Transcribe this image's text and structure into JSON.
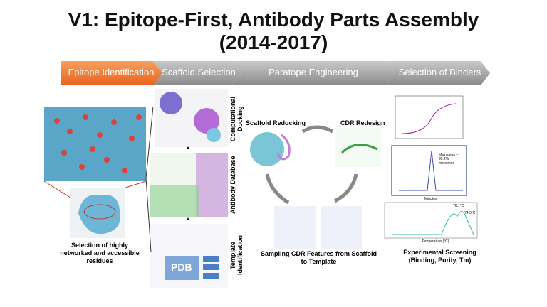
{
  "title": {
    "line1": "V1: Epitope-First, Antibody Parts Assembly",
    "line2": "(2014-2017)"
  },
  "steps": [
    "Epitope Identification",
    "Scaffold Selection",
    "Paratope Engineering",
    "Selection of Binders"
  ],
  "epitope": {
    "caption": "Selection of highly networked and accessible residues"
  },
  "scaffold": {
    "labels": [
      "Computational Docking",
      "Antibody Database",
      "Template Identification"
    ],
    "pdb": "PDB"
  },
  "paratope": {
    "redocking": "Scaffold Redocking",
    "redesign": "CDR Redesign",
    "sampling": "Sampling CDR Features from Scaffold to Template"
  },
  "binders": {
    "caption": "Experimental Screening (Binding, Purity, Tm)",
    "sec_axis": "Minutes",
    "sec_peak": "Main peak – 99.2% monomer",
    "tm_axis": "Temperature (°C)",
    "tm1": "76.1°C",
    "tm2": "74.3°C"
  }
}
